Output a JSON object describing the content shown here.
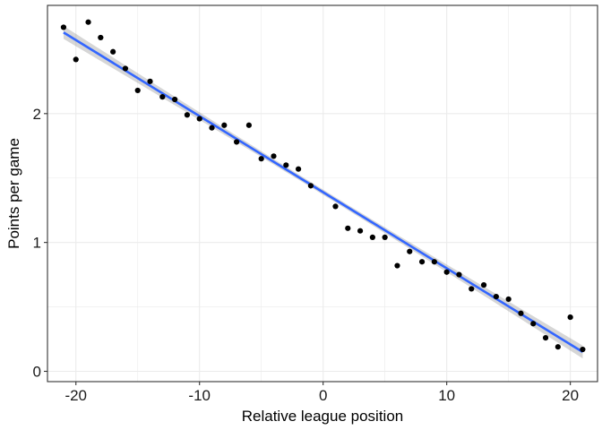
{
  "chart_data": {
    "type": "scatter",
    "title": "",
    "xlabel": "Relative league position",
    "ylabel": "Points per game",
    "xlim": [
      -22.3,
      22.2
    ],
    "ylim": [
      -0.08,
      2.84
    ],
    "x_ticks": [
      -20,
      -10,
      0,
      10,
      20
    ],
    "x_tick_labels": [
      "-20",
      "-10",
      "0",
      "10",
      "20"
    ],
    "y_ticks": [
      0,
      1,
      2
    ],
    "y_tick_labels": [
      "0",
      "1",
      "2"
    ],
    "grid": true,
    "points": [
      {
        "x": -21,
        "y": 2.67
      },
      {
        "x": -20,
        "y": 2.42
      },
      {
        "x": -19,
        "y": 2.71
      },
      {
        "x": -18,
        "y": 2.59
      },
      {
        "x": -17,
        "y": 2.48
      },
      {
        "x": -16,
        "y": 2.35
      },
      {
        "x": -15,
        "y": 2.18
      },
      {
        "x": -14,
        "y": 2.25
      },
      {
        "x": -13,
        "y": 2.13
      },
      {
        "x": -12,
        "y": 2.11
      },
      {
        "x": -11,
        "y": 1.99
      },
      {
        "x": -10,
        "y": 1.96
      },
      {
        "x": -9,
        "y": 1.89
      },
      {
        "x": -8,
        "y": 1.91
      },
      {
        "x": -7,
        "y": 1.78
      },
      {
        "x": -6,
        "y": 1.91
      },
      {
        "x": -5,
        "y": 1.65
      },
      {
        "x": -4,
        "y": 1.67
      },
      {
        "x": -3,
        "y": 1.6
      },
      {
        "x": -2,
        "y": 1.57
      },
      {
        "x": -1,
        "y": 1.44
      },
      {
        "x": 1,
        "y": 1.28
      },
      {
        "x": 2,
        "y": 1.11
      },
      {
        "x": 3,
        "y": 1.09
      },
      {
        "x": 4,
        "y": 1.04
      },
      {
        "x": 5,
        "y": 1.04
      },
      {
        "x": 6,
        "y": 0.82
      },
      {
        "x": 7,
        "y": 0.93
      },
      {
        "x": 8,
        "y": 0.85
      },
      {
        "x": 9,
        "y": 0.85
      },
      {
        "x": 10,
        "y": 0.77
      },
      {
        "x": 11,
        "y": 0.75
      },
      {
        "x": 12,
        "y": 0.64
      },
      {
        "x": 13,
        "y": 0.67
      },
      {
        "x": 14,
        "y": 0.58
      },
      {
        "x": 15,
        "y": 0.56
      },
      {
        "x": 16,
        "y": 0.45
      },
      {
        "x": 17,
        "y": 0.37
      },
      {
        "x": 18,
        "y": 0.26
      },
      {
        "x": 19,
        "y": 0.19
      },
      {
        "x": 20,
        "y": 0.42
      },
      {
        "x": 21,
        "y": 0.17
      }
    ],
    "trend_line": {
      "method": "linear",
      "x_start": -21,
      "y_start": 2.63,
      "x_end": 21,
      "y_end": 0.15
    },
    "confidence_band": {
      "half_width_at_ends": 0.05,
      "half_width_at_center": 0.02
    },
    "colors": {
      "points": "#000000",
      "line": "#3366FF",
      "band": "#999999",
      "grid": "#ebebeb",
      "panel_border": "#333333"
    }
  }
}
